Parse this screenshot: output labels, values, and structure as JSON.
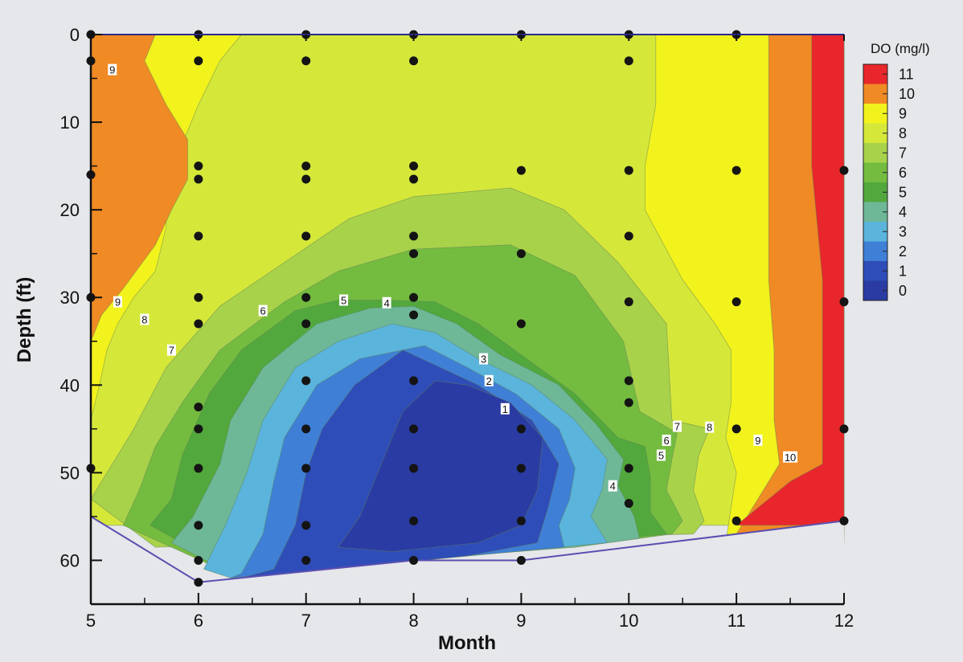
{
  "chart_data": {
    "type": "contour",
    "xlabel": "Month",
    "ylabel": "Depth (ft)",
    "xlim": [
      5,
      12
    ],
    "ylim": [
      0,
      65
    ],
    "y_inverted": true,
    "x_ticks": [
      "5",
      "6",
      "7",
      "8",
      "9",
      "10",
      "11",
      "12"
    ],
    "y_ticks": [
      "0",
      "10",
      "20",
      "30",
      "40",
      "50",
      "60"
    ],
    "legend": {
      "title": "DO (mg/l)",
      "position": "right",
      "levels": [
        "11",
        "10",
        "9",
        "8",
        "7",
        "6",
        "5",
        "4",
        "3",
        "2",
        "1",
        "0"
      ],
      "colors": [
        "#e8262b",
        "#f08a24",
        "#f2f21c",
        "#d5e83a",
        "#a8d24a",
        "#74bc3f",
        "#52a83c",
        "#6eb898",
        "#5ab4dc",
        "#3f7fd6",
        "#2f4db8",
        "#2a3ca3"
      ]
    },
    "contour_labels": [
      {
        "text": "9",
        "x": 5.2,
        "y": 4.0
      },
      {
        "text": "9",
        "x": 5.25,
        "y": 30.5
      },
      {
        "text": "8",
        "x": 5.5,
        "y": 32.5
      },
      {
        "text": "7",
        "x": 5.75,
        "y": 36.0
      },
      {
        "text": "6",
        "x": 6.6,
        "y": 31.5
      },
      {
        "text": "5",
        "x": 7.35,
        "y": 30.3
      },
      {
        "text": "4",
        "x": 7.75,
        "y": 30.6
      },
      {
        "text": "3",
        "x": 8.65,
        "y": 37.0
      },
      {
        "text": "2",
        "x": 8.7,
        "y": 39.5
      },
      {
        "text": "1",
        "x": 8.85,
        "y": 42.7
      },
      {
        "text": "7",
        "x": 10.45,
        "y": 44.7
      },
      {
        "text": "6",
        "x": 10.35,
        "y": 46.3
      },
      {
        "text": "5",
        "x": 10.3,
        "y": 48.0
      },
      {
        "text": "4",
        "x": 9.85,
        "y": 51.5
      },
      {
        "text": "8",
        "x": 10.75,
        "y": 44.8
      },
      {
        "text": "9",
        "x": 11.2,
        "y": 46.3
      },
      {
        "text": "10",
        "x": 11.5,
        "y": 48.2
      }
    ],
    "sample_points": [
      {
        "x": 5,
        "y": 0
      },
      {
        "x": 5,
        "y": 3
      },
      {
        "x": 5,
        "y": 16
      },
      {
        "x": 5,
        "y": 30
      },
      {
        "x": 5,
        "y": 49.5
      },
      {
        "x": 6,
        "y": 0
      },
      {
        "x": 6,
        "y": 3
      },
      {
        "x": 6,
        "y": 15
      },
      {
        "x": 6,
        "y": 16.5
      },
      {
        "x": 6,
        "y": 23
      },
      {
        "x": 6,
        "y": 30
      },
      {
        "x": 6,
        "y": 33
      },
      {
        "x": 6,
        "y": 42.5
      },
      {
        "x": 6,
        "y": 45
      },
      {
        "x": 6,
        "y": 49.5
      },
      {
        "x": 6,
        "y": 56
      },
      {
        "x": 6,
        "y": 60
      },
      {
        "x": 6,
        "y": 62.5
      },
      {
        "x": 7,
        "y": 0
      },
      {
        "x": 7,
        "y": 3
      },
      {
        "x": 7,
        "y": 15
      },
      {
        "x": 7,
        "y": 16.5
      },
      {
        "x": 7,
        "y": 23
      },
      {
        "x": 7,
        "y": 30
      },
      {
        "x": 7,
        "y": 33
      },
      {
        "x": 7,
        "y": 39.5
      },
      {
        "x": 7,
        "y": 45
      },
      {
        "x": 7,
        "y": 49.5
      },
      {
        "x": 7,
        "y": 56
      },
      {
        "x": 7,
        "y": 60
      },
      {
        "x": 8,
        "y": 0
      },
      {
        "x": 8,
        "y": 3
      },
      {
        "x": 8,
        "y": 15
      },
      {
        "x": 8,
        "y": 16.5
      },
      {
        "x": 8,
        "y": 23
      },
      {
        "x": 8,
        "y": 25
      },
      {
        "x": 8,
        "y": 30
      },
      {
        "x": 8,
        "y": 32
      },
      {
        "x": 8,
        "y": 39.5
      },
      {
        "x": 8,
        "y": 45
      },
      {
        "x": 8,
        "y": 49.5
      },
      {
        "x": 8,
        "y": 55.5
      },
      {
        "x": 8,
        "y": 60
      },
      {
        "x": 9,
        "y": 0
      },
      {
        "x": 9,
        "y": 15.5
      },
      {
        "x": 9,
        "y": 25
      },
      {
        "x": 9,
        "y": 33
      },
      {
        "x": 9,
        "y": 45
      },
      {
        "x": 9,
        "y": 49.5
      },
      {
        "x": 9,
        "y": 55.5
      },
      {
        "x": 9,
        "y": 60
      },
      {
        "x": 10,
        "y": 0
      },
      {
        "x": 10,
        "y": 3
      },
      {
        "x": 10,
        "y": 15.5
      },
      {
        "x": 10,
        "y": 23
      },
      {
        "x": 10,
        "y": 30.5
      },
      {
        "x": 10,
        "y": 39.5
      },
      {
        "x": 10,
        "y": 42
      },
      {
        "x": 10,
        "y": 49.5
      },
      {
        "x": 10,
        "y": 53.5
      },
      {
        "x": 11,
        "y": 0
      },
      {
        "x": 11,
        "y": 15.5
      },
      {
        "x": 11,
        "y": 30.5
      },
      {
        "x": 11,
        "y": 45
      },
      {
        "x": 11,
        "y": 55.5
      },
      {
        "x": 12,
        "y": 15.5
      },
      {
        "x": 12,
        "y": 30.5
      },
      {
        "x": 12,
        "y": 45
      },
      {
        "x": 12,
        "y": 55.5
      }
    ],
    "bottom_boundary": [
      [
        5,
        55
      ],
      [
        6,
        62.5
      ],
      [
        8,
        60
      ],
      [
        9,
        60
      ],
      [
        12,
        55.5
      ]
    ],
    "regions": [
      {
        "level": "8",
        "color": "#d5e83a",
        "points": [
          [
            5,
            0
          ],
          [
            12,
            0
          ],
          [
            12,
            56
          ],
          [
            5,
            56
          ]
        ]
      },
      {
        "level": "9",
        "color": "#f2f21c",
        "points": [
          [
            5,
            0
          ],
          [
            6.4,
            0
          ],
          [
            6.2,
            3
          ],
          [
            6,
            8
          ],
          [
            5.8,
            14
          ],
          [
            5.7,
            17
          ],
          [
            5.7,
            22
          ],
          [
            5.6,
            27
          ],
          [
            5.4,
            30
          ],
          [
            5.25,
            33
          ],
          [
            5.15,
            36
          ],
          [
            5.08,
            40
          ],
          [
            5,
            44
          ]
        ]
      },
      {
        "level": "10",
        "color": "#f08a24",
        "points": [
          [
            5,
            0
          ],
          [
            5.6,
            0
          ],
          [
            5.5,
            3
          ],
          [
            5.7,
            8
          ],
          [
            5.9,
            12
          ],
          [
            5.9,
            16.5
          ],
          [
            5.75,
            20
          ],
          [
            5.6,
            24
          ],
          [
            5.3,
            29
          ],
          [
            5.1,
            32
          ],
          [
            5,
            35
          ]
        ]
      },
      {
        "level": "9",
        "color": "#f2f21c",
        "points": [
          [
            10.25,
            0
          ],
          [
            12,
            0
          ],
          [
            12,
            58
          ],
          [
            10.9,
            58
          ],
          [
            10.95,
            54
          ],
          [
            11.0,
            50
          ],
          [
            10.9,
            46
          ],
          [
            10.95,
            42
          ],
          [
            10.95,
            36
          ],
          [
            10.8,
            33
          ],
          [
            10.5,
            28
          ],
          [
            10.15,
            20
          ],
          [
            10.15,
            15
          ],
          [
            10.25,
            8
          ]
        ]
      },
      {
        "level": "10",
        "color": "#f08a24",
        "points": [
          [
            11.3,
            0
          ],
          [
            12,
            0
          ],
          [
            12,
            57
          ],
          [
            11.0,
            57
          ],
          [
            11.2,
            53
          ],
          [
            11.4,
            49
          ],
          [
            11.35,
            44
          ],
          [
            11.35,
            36
          ],
          [
            11.3,
            28
          ],
          [
            11.3,
            15
          ]
        ]
      },
      {
        "level": "11",
        "color": "#e8262b",
        "points": [
          [
            11.7,
            0
          ],
          [
            12,
            0
          ],
          [
            12,
            56
          ],
          [
            11.0,
            56
          ],
          [
            11.2,
            54
          ],
          [
            11.5,
            51
          ],
          [
            11.8,
            49
          ],
          [
            11.8,
            40
          ],
          [
            11.8,
            28
          ],
          [
            11.7,
            15
          ]
        ]
      },
      {
        "level": "7",
        "color": "#a8d24a",
        "points": [
          [
            5,
            53
          ],
          [
            5.15,
            50
          ],
          [
            5.4,
            45
          ],
          [
            5.7,
            38
          ],
          [
            6.2,
            31
          ],
          [
            6.8,
            26
          ],
          [
            7.4,
            21
          ],
          [
            8.0,
            18.5
          ],
          [
            8.9,
            17.5
          ],
          [
            9.4,
            20
          ],
          [
            9.9,
            26
          ],
          [
            10.35,
            33
          ],
          [
            10.4,
            44
          ],
          [
            10.75,
            45
          ],
          [
            10.65,
            48
          ],
          [
            10.6,
            52
          ],
          [
            10.7,
            55.5
          ],
          [
            10.6,
            57
          ],
          [
            5.6,
            58.5
          ]
        ]
      },
      {
        "level": "6",
        "color": "#74bc3f",
        "points": [
          [
            5.3,
            56
          ],
          [
            5.45,
            52
          ],
          [
            5.6,
            47
          ],
          [
            5.85,
            42
          ],
          [
            6.2,
            36
          ],
          [
            6.8,
            30.5
          ],
          [
            7.3,
            27
          ],
          [
            8.0,
            24.5
          ],
          [
            8.9,
            24
          ],
          [
            9.5,
            27.5
          ],
          [
            9.95,
            35
          ],
          [
            10.1,
            43
          ],
          [
            10.45,
            45.5
          ],
          [
            10.4,
            48.5
          ],
          [
            10.35,
            52
          ],
          [
            10.5,
            55.5
          ],
          [
            10.4,
            57
          ],
          [
            9.5,
            58.5
          ],
          [
            6.2,
            61
          ]
        ]
      },
      {
        "level": "5",
        "color": "#52a83c",
        "points": [
          [
            5.55,
            56
          ],
          [
            5.75,
            53
          ],
          [
            5.85,
            48
          ],
          [
            6.1,
            41
          ],
          [
            6.4,
            36
          ],
          [
            6.9,
            31.5
          ],
          [
            7.3,
            30.3
          ],
          [
            7.75,
            30.3
          ],
          [
            8.2,
            30.5
          ],
          [
            8.6,
            33
          ],
          [
            9.05,
            37
          ],
          [
            9.5,
            41
          ],
          [
            9.9,
            46
          ],
          [
            10.15,
            47
          ],
          [
            10.2,
            50.5
          ],
          [
            10.2,
            54.5
          ],
          [
            10.35,
            57
          ],
          [
            9.5,
            58
          ],
          [
            6.3,
            61
          ]
        ]
      },
      {
        "level": "4",
        "color": "#6eb898",
        "points": [
          [
            5.75,
            58
          ],
          [
            5.95,
            55
          ],
          [
            6.2,
            49
          ],
          [
            6.3,
            44
          ],
          [
            6.6,
            38
          ],
          [
            7.1,
            33
          ],
          [
            7.6,
            31.2
          ],
          [
            8.0,
            31
          ],
          [
            8.4,
            33
          ],
          [
            8.8,
            36.5
          ],
          [
            9.35,
            40
          ],
          [
            9.7,
            44.5
          ],
          [
            9.95,
            48.5
          ],
          [
            9.9,
            51.5
          ],
          [
            10.05,
            55
          ],
          [
            10.1,
            57.5
          ],
          [
            9.5,
            58.5
          ],
          [
            6.3,
            61.5
          ]
        ]
      },
      {
        "level": "3",
        "color": "#5ab4dc",
        "points": [
          [
            6.05,
            61
          ],
          [
            6.25,
            56
          ],
          [
            6.45,
            50
          ],
          [
            6.6,
            44
          ],
          [
            6.9,
            38
          ],
          [
            7.3,
            35
          ],
          [
            7.8,
            33
          ],
          [
            8.2,
            34
          ],
          [
            8.6,
            37
          ],
          [
            9.1,
            40
          ],
          [
            9.5,
            44
          ],
          [
            9.8,
            48.5
          ],
          [
            9.75,
            52
          ],
          [
            9.65,
            55
          ],
          [
            9.8,
            58
          ],
          [
            8.5,
            59.5
          ],
          [
            6.3,
            62
          ]
        ]
      },
      {
        "level": "2",
        "color": "#3f7fd6",
        "points": [
          [
            6.4,
            61.5
          ],
          [
            6.6,
            57
          ],
          [
            6.7,
            51
          ],
          [
            6.8,
            46
          ],
          [
            7.1,
            40
          ],
          [
            7.5,
            37
          ],
          [
            8.1,
            35.5
          ],
          [
            8.5,
            38
          ],
          [
            8.95,
            41
          ],
          [
            9.35,
            45
          ],
          [
            9.5,
            49.5
          ],
          [
            9.45,
            53
          ],
          [
            9.35,
            56
          ],
          [
            9.4,
            58.5
          ],
          [
            8.5,
            59.5
          ],
          [
            6.3,
            62
          ]
        ]
      },
      {
        "level": "1",
        "color": "#2f4db8",
        "points": [
          [
            6.7,
            61
          ],
          [
            6.9,
            56
          ],
          [
            7.0,
            50
          ],
          [
            7.15,
            45
          ],
          [
            7.45,
            40
          ],
          [
            7.9,
            36
          ],
          [
            8.6,
            40
          ],
          [
            9.1,
            44
          ],
          [
            9.35,
            49
          ],
          [
            9.25,
            54
          ],
          [
            9.15,
            58
          ],
          [
            8.5,
            59.5
          ],
          [
            6.4,
            62
          ]
        ]
      },
      {
        "level": "0",
        "color": "#2a3ca3",
        "points": [
          [
            7.3,
            58.5
          ],
          [
            7.5,
            55
          ],
          [
            7.7,
            49
          ],
          [
            7.9,
            43
          ],
          [
            8.2,
            39.5
          ],
          [
            8.5,
            40
          ],
          [
            8.9,
            42
          ],
          [
            9.2,
            46
          ],
          [
            9.15,
            52
          ],
          [
            9.0,
            56
          ],
          [
            8.6,
            58
          ],
          [
            7.8,
            59
          ]
        ]
      }
    ]
  }
}
